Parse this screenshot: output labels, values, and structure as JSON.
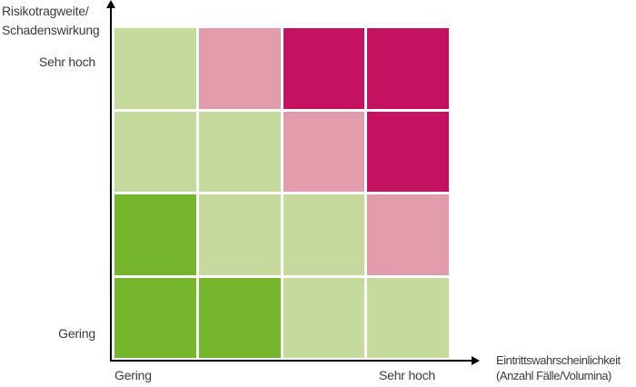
{
  "colors": {
    "light_green": "#c5da9c",
    "dark_green": "#75b62c",
    "pink": "#e39cab",
    "magenta": "#c41261",
    "axis": "#000000",
    "text": "#3a3a39",
    "background": "#ffffff"
  },
  "labels": {
    "y_axis_line1": "Risikotragweite/",
    "y_axis_line2": "Schadenswirkung",
    "y_tick_top": "Sehr hoch",
    "y_tick_bottom": "Gering",
    "x_tick_left": "Gering",
    "x_tick_right": "Sehr hoch",
    "x_axis_line1": "Eintrittswahrscheinlichkeit",
    "x_axis_line2": "(Anzahl Fälle/Volumina)"
  },
  "chart_data": {
    "type": "heatmap",
    "title": "",
    "xlabel": "Eintrittswahrscheinlichkeit (Anzahl Fälle/Volumina)",
    "ylabel": "Risikotragweite/Schadenswirkung",
    "x_ticks": [
      "Gering",
      "Sehr hoch"
    ],
    "y_ticks": [
      "Sehr hoch",
      "Gering"
    ],
    "x_axis_range_note": "qualitative scale from Gering to Sehr hoch",
    "y_axis_range_note": "qualitative scale from Gering to Sehr hoch",
    "grid": false,
    "legend_position": "none",
    "rows": 4,
    "cols": 4,
    "cell_levels_by_row_top_to_bottom": [
      [
        "light_green",
        "pink",
        "magenta",
        "magenta"
      ],
      [
        "light_green",
        "light_green",
        "pink",
        "magenta"
      ],
      [
        "dark_green",
        "light_green",
        "light_green",
        "pink"
      ],
      [
        "dark_green",
        "dark_green",
        "light_green",
        "light_green"
      ]
    ],
    "level_meaning": {
      "dark_green": "low risk",
      "light_green": "moderate risk",
      "pink": "elevated risk",
      "magenta": "high risk"
    }
  }
}
